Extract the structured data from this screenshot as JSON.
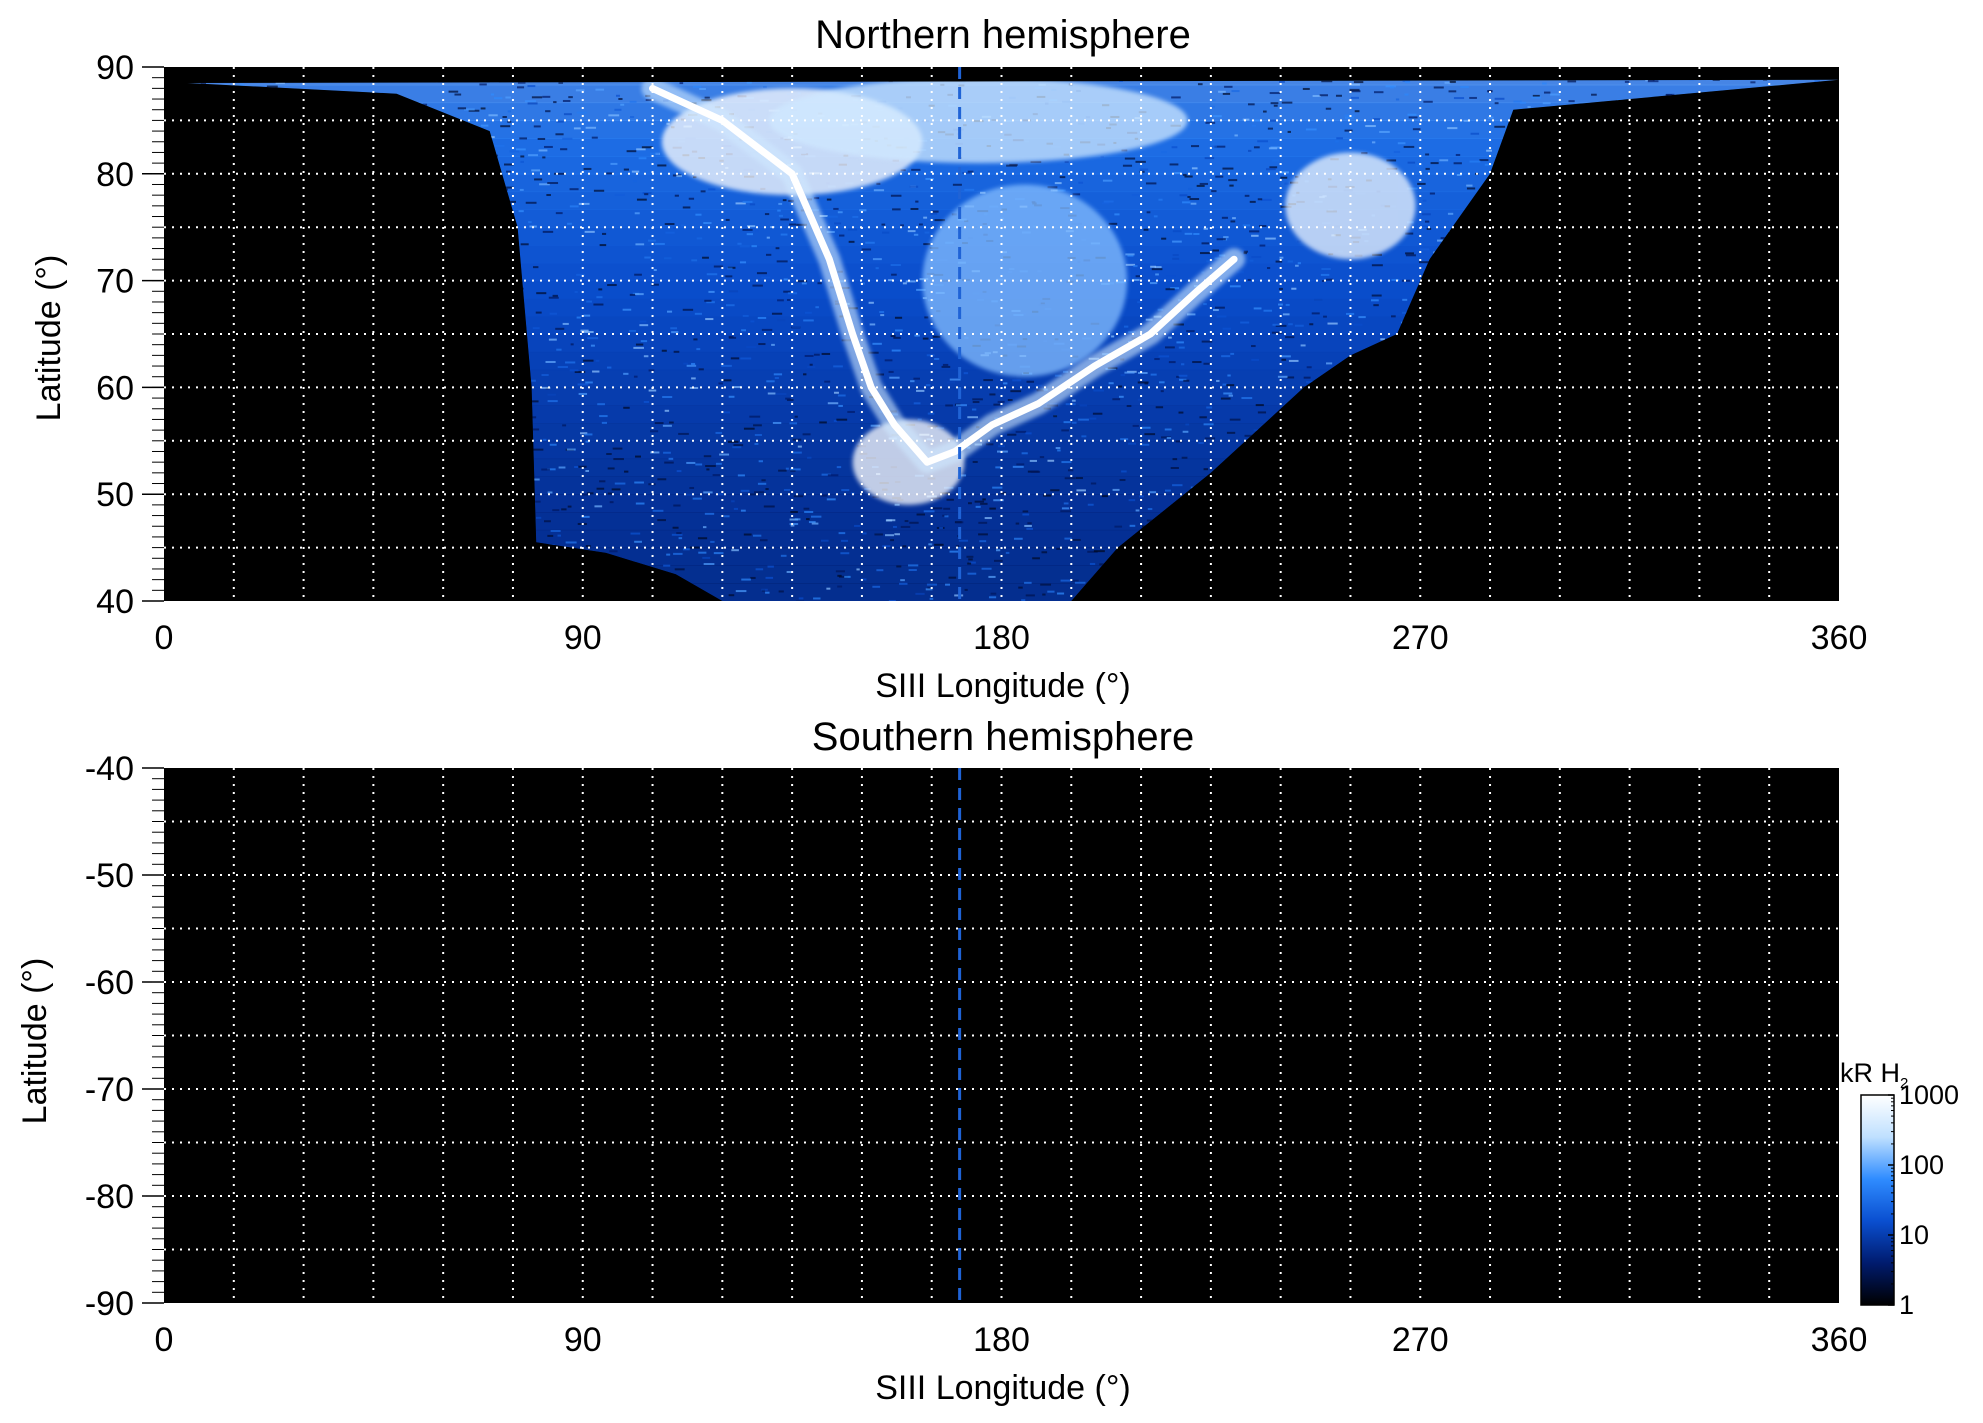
{
  "chart_data": [
    {
      "type": "heatmap",
      "title": "Northern hemisphere",
      "xlabel": "SIII Longitude (°)",
      "ylabel": "Latitude (°)",
      "xlim": [
        0,
        360
      ],
      "ylim": [
        40,
        90
      ],
      "xticks": [
        0,
        90,
        180,
        270,
        360
      ],
      "yticks": [
        40,
        50,
        60,
        70,
        80,
        90
      ],
      "grid": true,
      "reference_line_longitude": 171,
      "emission": {
        "observed_region": [
          [
            5,
            88.5
          ],
          [
            50,
            87.5
          ],
          [
            70,
            84
          ],
          [
            76,
            75
          ],
          [
            79,
            60
          ],
          [
            80,
            45.5
          ],
          [
            95,
            44.5
          ],
          [
            110,
            42.5
          ],
          [
            120,
            40
          ],
          [
            195,
            40
          ],
          [
            205,
            45
          ],
          [
            225,
            52
          ],
          [
            245,
            60
          ],
          [
            255,
            63
          ],
          [
            265,
            65
          ],
          [
            272,
            72
          ],
          [
            285,
            80
          ],
          [
            290,
            86
          ],
          [
            360,
            88.8
          ]
        ],
        "main_oval": [
          [
            105,
            88
          ],
          [
            120,
            85
          ],
          [
            135,
            80
          ],
          [
            143,
            72
          ],
          [
            148,
            65
          ],
          [
            152,
            60
          ],
          [
            157,
            56.5
          ],
          [
            164,
            53
          ],
          [
            170,
            54
          ],
          [
            178,
            56.5
          ],
          [
            188,
            58.5
          ],
          [
            200,
            62
          ],
          [
            212,
            65
          ],
          [
            222,
            69
          ],
          [
            230,
            72
          ]
        ],
        "bright_regions": [
          {
            "lon": 135,
            "lat": 83,
            "dlon": 28,
            "dlat": 5,
            "level": 1.0
          },
          {
            "lon": 160,
            "lat": 53,
            "dlon": 12,
            "dlat": 4,
            "level": 1.0
          },
          {
            "lon": 185,
            "lat": 70,
            "dlon": 22,
            "dlat": 9,
            "level": 0.72
          },
          {
            "lon": 255,
            "lat": 77,
            "dlon": 14,
            "dlat": 5,
            "level": 0.95
          },
          {
            "lon": 175,
            "lat": 85,
            "dlon": 45,
            "dlat": 4,
            "level": 0.85
          }
        ]
      }
    },
    {
      "type": "heatmap",
      "title": "Southern hemisphere",
      "xlabel": "SIII Longitude (°)",
      "ylabel": "Latitude (°)",
      "xlim": [
        0,
        360
      ],
      "ylim": [
        -90,
        -40
      ],
      "xticks": [
        0,
        90,
        180,
        270,
        360
      ],
      "yticks": [
        -90,
        -80,
        -70,
        -60,
        -50,
        -40
      ],
      "grid": true,
      "reference_line_longitude": 171,
      "emission": null
    }
  ],
  "colorbar": {
    "label": "kR H",
    "label_subscript": "2",
    "scale": "log",
    "range": [
      1,
      1000
    ],
    "ticks": [
      1,
      10,
      100,
      1000
    ],
    "colors": [
      "#000000",
      "#001b6e",
      "#0a4fd0",
      "#2f8cff",
      "#bfe0ff",
      "#ffffff"
    ]
  }
}
